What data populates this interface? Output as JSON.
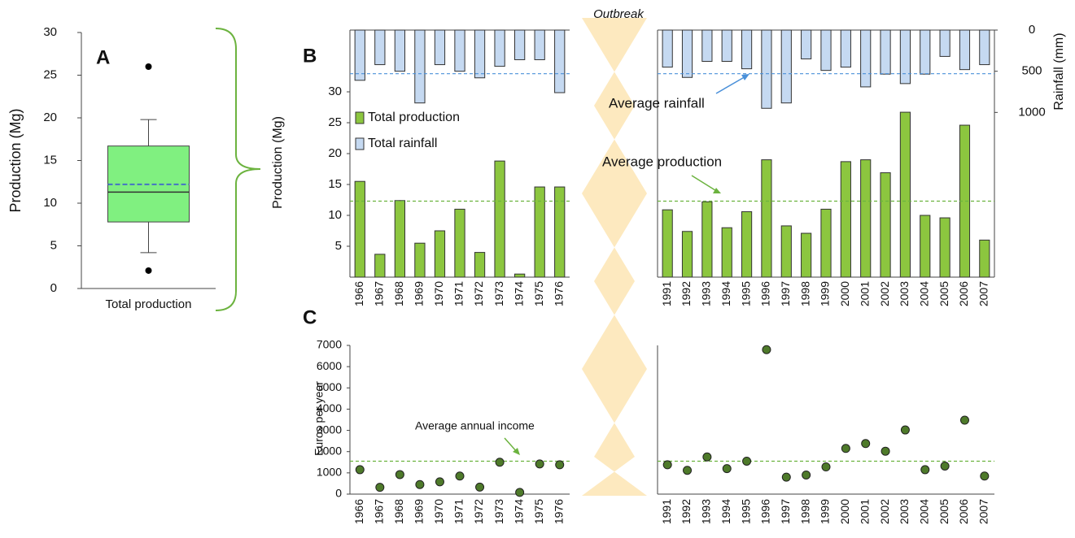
{
  "chart_data": [
    {
      "type": "box",
      "title": "A",
      "ylabel": "Production (Mg)",
      "categories": [
        "Total production"
      ],
      "boxes": [
        {
          "min": 4.2,
          "q1": 7.8,
          "median": 11.3,
          "mean": 12.2,
          "q3": 16.7,
          "max": 19.8,
          "outliers": [
            26,
            2.1
          ]
        }
      ],
      "color": "#80f080",
      "mean_color": "#4472c4",
      "ylim": [
        0,
        30
      ],
      "yticks": [
        0,
        5,
        10,
        15,
        20,
        25,
        30
      ]
    },
    {
      "type": "bar",
      "title": "B",
      "ylabel": "Production  (Mg)",
      "y2label": "Rainfall (mm)",
      "annotation": "Outbreak",
      "categories": [
        "1966",
        "1967",
        "1968",
        "1969",
        "1970",
        "1971",
        "1972",
        "1973",
        "1974",
        "1975",
        "1976",
        "1991",
        "1992",
        "1993",
        "1994",
        "1995",
        "1996",
        "1997",
        "1998",
        "1999",
        "2000",
        "2001",
        "2002",
        "2003",
        "2004",
        "2005",
        "2006",
        "2007"
      ],
      "series": [
        {
          "name": "Total production",
          "color": "#8cc63f",
          "axis": "y",
          "values": [
            15.5,
            3.7,
            12.4,
            5.5,
            7.5,
            11.0,
            4.0,
            18.8,
            0.5,
            14.6,
            14.6,
            10.9,
            7.4,
            12.2,
            8.0,
            10.6,
            19.0,
            8.3,
            7.1,
            11.0,
            18.7,
            19.0,
            16.9,
            26.7,
            10.0,
            9.6,
            24.6,
            6.0
          ]
        },
        {
          "name": "Total rainfall",
          "color": "#c5d9f1",
          "axis": "y2",
          "values": [
            610,
            420,
            500,
            885,
            420,
            500,
            580,
            440,
            360,
            360,
            760,
            450,
            575,
            380,
            380,
            470,
            950,
            885,
            350,
            490,
            450,
            690,
            535,
            650,
            535,
            320,
            480,
            420
          ]
        }
      ],
      "reference_lines": [
        {
          "label": "Average rainfall",
          "value": 530,
          "axis": "y2",
          "color": "#4a90d9"
        },
        {
          "label": "Average production",
          "value": 12.3,
          "axis": "y",
          "color": "#6cb33f"
        }
      ],
      "ylim": [
        0,
        40
      ],
      "yticks": [
        5,
        10,
        15,
        20,
        25,
        30
      ],
      "y2lim": [
        0,
        3000
      ],
      "y2ticks": [
        0,
        500,
        1000
      ],
      "y2_inverted": true
    },
    {
      "type": "scatter",
      "title": "C",
      "ylabel": "Euros per year",
      "categories": [
        "1966",
        "1967",
        "1968",
        "1969",
        "1970",
        "1971",
        "1972",
        "1973",
        "1974",
        "1975",
        "1976",
        "1991",
        "1992",
        "1993",
        "1994",
        "1995",
        "1996",
        "1997",
        "1998",
        "1999",
        "2000",
        "2001",
        "2002",
        "2003",
        "2004",
        "2005",
        "2006",
        "2007"
      ],
      "values": [
        1150,
        320,
        920,
        450,
        580,
        850,
        330,
        1500,
        80,
        1420,
        1380,
        1380,
        1120,
        1750,
        1200,
        1550,
        6800,
        800,
        900,
        1280,
        2150,
        2380,
        2020,
        3020,
        1150,
        1320,
        3480,
        850
      ],
      "color": "#4e7a2a",
      "reference_lines": [
        {
          "label": "Average annual income",
          "value": 1550,
          "axis": "y",
          "color": "#6cb33f"
        }
      ],
      "ylim": [
        0,
        7000
      ],
      "yticks": [
        0,
        1000,
        2000,
        3000,
        4000,
        5000,
        6000,
        7000
      ]
    }
  ]
}
